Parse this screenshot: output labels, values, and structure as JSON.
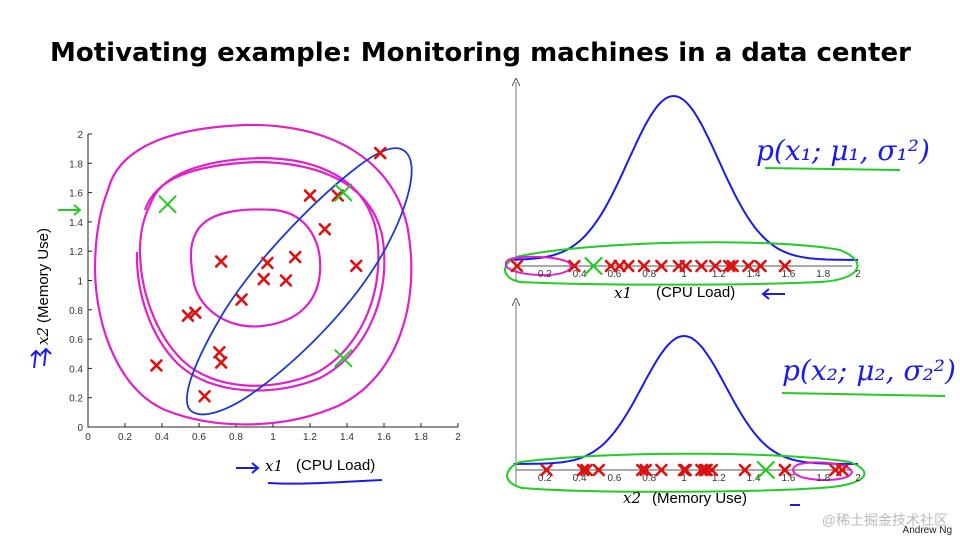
{
  "slide": {
    "title": "Motivating example: Monitoring machines in a data center",
    "credit": "Andrew Ng",
    "watermark": "@稀土掘金技术社区"
  },
  "colors": {
    "point": "#dd1111",
    "gaussian_curve": "#1a1aee",
    "ellipse": "#1a3bcc",
    "contours": "#e020c8",
    "annotation_green": "#22cc22",
    "annotation_blue": "#1a1aee"
  },
  "annotations": {
    "p1": "p(x₁; μ₁, σ₁²)",
    "p2": "p(x₂; μ₂, σ₂²)"
  },
  "chart_data": [
    {
      "type": "scatter",
      "xlabel_var": "x1",
      "xlabel": "(CPU Load)",
      "ylabel_var": "x2",
      "ylabel": "(Memory Use)",
      "xlim": [
        0,
        2
      ],
      "ylim": [
        0,
        2
      ],
      "xticks": [
        "0",
        "0.2",
        "0.4",
        "0.6",
        "0.8",
        "1",
        "1.2",
        "1.4",
        "1.6",
        "1.8",
        "2"
      ],
      "yticks": [
        "0",
        "0.2",
        "0.4",
        "0.6",
        "0.8",
        "1",
        "1.2",
        "1.4",
        "1.6",
        "1.8",
        "2"
      ],
      "points": [
        [
          1.58,
          1.87
        ],
        [
          1.2,
          1.58
        ],
        [
          1.35,
          1.58
        ],
        [
          1.28,
          1.35
        ],
        [
          1.45,
          1.1
        ],
        [
          1.12,
          1.16
        ],
        [
          0.72,
          1.13
        ],
        [
          0.97,
          1.12
        ],
        [
          0.95,
          1.01
        ],
        [
          1.07,
          1.0
        ],
        [
          0.83,
          0.87
        ],
        [
          0.58,
          0.78
        ],
        [
          0.54,
          0.76
        ],
        [
          0.71,
          0.51
        ],
        [
          0.72,
          0.44
        ],
        [
          0.37,
          0.42
        ],
        [
          0.63,
          0.21
        ]
      ],
      "anomaly_marks": [
        [
          0.43,
          1.52
        ],
        [
          1.38,
          1.6
        ],
        [
          1.38,
          0.47
        ]
      ]
    },
    {
      "type": "scatter",
      "xlabel_var": "x1",
      "xlabel": "(CPU Load)",
      "xlim": [
        0,
        2
      ],
      "xticks": [
        "0.2",
        "0.4",
        "0.6",
        "0.8",
        "1",
        "1.2",
        "1.4",
        "1.6",
        "1.8",
        "2"
      ],
      "points_x": [
        0.04,
        0.37,
        0.58,
        0.63,
        0.68,
        0.77,
        0.87,
        0.97,
        1.01,
        1.1,
        1.18,
        1.26,
        1.28,
        1.37,
        1.44,
        1.58
      ],
      "anomaly_marks_x": [
        0.48
      ],
      "gaussian": {
        "mean": 0.94,
        "std": 0.26
      }
    },
    {
      "type": "scatter",
      "xlabel_var": "x2",
      "xlabel": "(Memory Use)",
      "xlim": [
        0,
        2
      ],
      "xticks": [
        "0.2",
        "0.4",
        "0.6",
        "0.8",
        "1",
        "1.2",
        "1.4",
        "1.6",
        "1.8",
        "2"
      ],
      "points_x": [
        0.21,
        0.42,
        0.44,
        0.51,
        0.76,
        0.78,
        0.87,
        1.0,
        1.01,
        1.1,
        1.12,
        1.13,
        1.16,
        1.35,
        1.58,
        1.58,
        1.87,
        1.91
      ],
      "anomaly_marks_x": [
        1.47
      ],
      "gaussian": {
        "mean": 1.0,
        "std": 0.24
      }
    }
  ]
}
